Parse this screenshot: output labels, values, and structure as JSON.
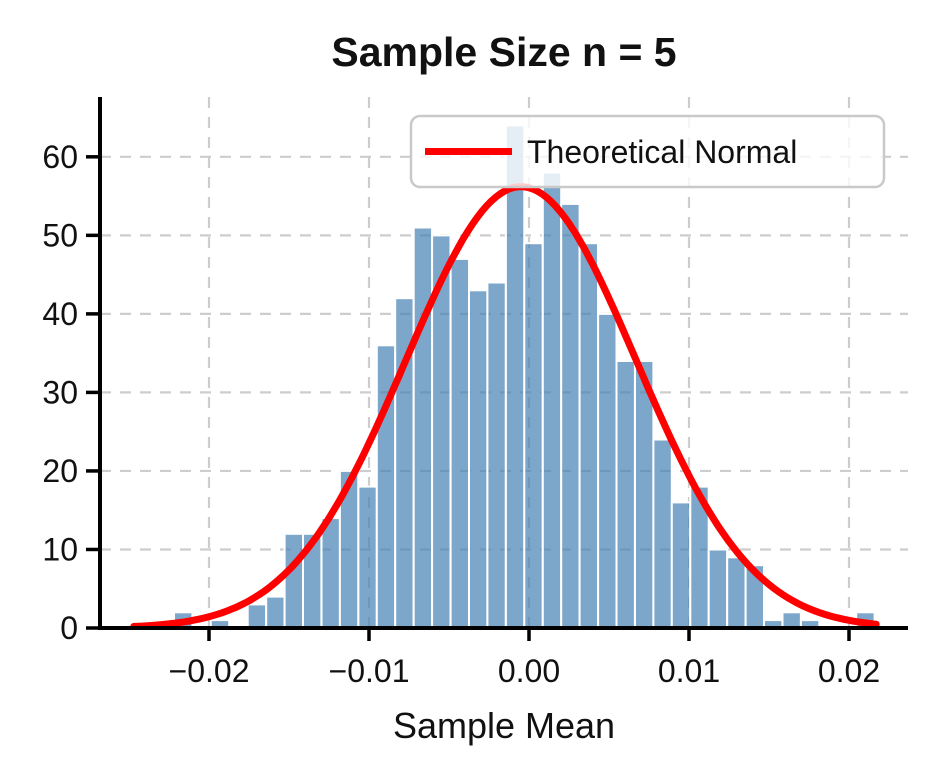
{
  "figure": {
    "title": "Sample Size n = 5",
    "xlabel": "Sample Mean",
    "background": "#ffffff",
    "text_color": "#111111"
  },
  "legend": {
    "label": "Theoretical Normal",
    "line_color": "#ff0000",
    "border_color": "#c9c9c9",
    "background": "rgba(255,255,255,0.8)",
    "position": "upper right"
  },
  "axes": {
    "spine_color": "#000000",
    "grid_color": "#cdcdcd",
    "grid_style": "dashed",
    "x_ticks": [
      {
        "value": -0.02,
        "label": "−0.02"
      },
      {
        "value": -0.01,
        "label": "−0.01"
      },
      {
        "value": 0.0,
        "label": "0.00"
      },
      {
        "value": 0.01,
        "label": "0.01"
      },
      {
        "value": 0.02,
        "label": "0.02"
      }
    ],
    "y_ticks": [
      {
        "value": 0,
        "label": "0"
      },
      {
        "value": 10,
        "label": "10"
      },
      {
        "value": 20,
        "label": "20"
      },
      {
        "value": 30,
        "label": "30"
      },
      {
        "value": 40,
        "label": "40"
      },
      {
        "value": 50,
        "label": "50"
      },
      {
        "value": 60,
        "label": "60"
      }
    ]
  },
  "chart_data": {
    "type": "bar",
    "subtype": "histogram-with-curve",
    "title": "Sample Size n = 5",
    "xlabel": "Sample Mean",
    "ylabel": "",
    "x_range": [
      -0.0268,
      0.0237
    ],
    "y_range": [
      0,
      67.6
    ],
    "grid": true,
    "legend_position": "upper right",
    "histogram": {
      "bin_start": -0.02219,
      "bin_width": 0.0011525,
      "counts": [
        2,
        0,
        1,
        0,
        3,
        4,
        12,
        12,
        14,
        20,
        18,
        36,
        42,
        51,
        50,
        47,
        43,
        44,
        64,
        49,
        58,
        54,
        49,
        40,
        34,
        34,
        24,
        16,
        18,
        10,
        9,
        8,
        1,
        2,
        1,
        0,
        0,
        2
      ],
      "bar_color": "#4682B4",
      "bar_opacity": 0.7,
      "bar_edge_color": "#ffffff"
    },
    "normal_curve": {
      "label": "Theoretical Normal",
      "mu": -0.0005,
      "sigma": 0.0072,
      "peak": 56.2,
      "x_min": -0.0247,
      "x_max": 0.0217,
      "color": "#ff0000",
      "line_width": 7
    }
  }
}
